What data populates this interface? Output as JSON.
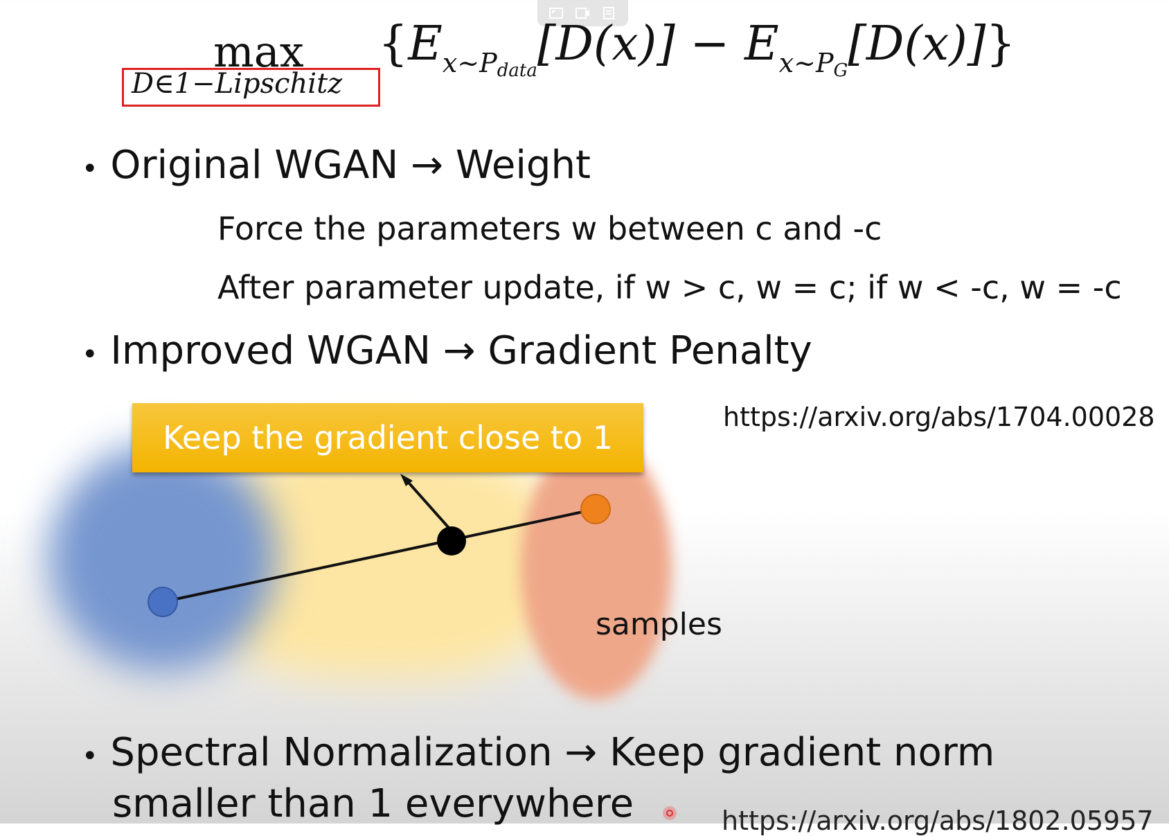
{
  "toolbar": {
    "icons": [
      "fullscreen-icon",
      "video-icon",
      "notes-icon"
    ]
  },
  "formula": {
    "max": "max",
    "constraint": "D∈1−Lipschitz",
    "open_brace": "{",
    "E1": "E",
    "sub1": "x~P",
    "sub1b": "data",
    "term1": "[D(x)] − ",
    "E2": "E",
    "sub2": "x~P",
    "sub2b": "G",
    "term2": "[D(x)]",
    "close_brace": "}"
  },
  "bullets": {
    "b1": "Original WGAN → Weight",
    "b1_sub1": "Force the parameters w between c and -c",
    "b1_sub2": "After parameter update, if w > c, w = c; if w < -c, w = -c",
    "b2": "Improved WGAN → Gradient Penalty",
    "b2_url": "https://arxiv.org/abs/1704.00028",
    "b3_line1": "Spectral Normalization → Keep gradient norm",
    "b3_line2": "smaller than 1 everywhere",
    "b3_url": "https://arxiv.org/abs/1802.05957"
  },
  "diagram": {
    "callout": "Keep the gradient close to 1",
    "samples_label": "samples",
    "colors": {
      "blue": "#4a72c4",
      "orange": "#f0821e",
      "callout": "#f4b400"
    }
  },
  "bullet_char": "•"
}
